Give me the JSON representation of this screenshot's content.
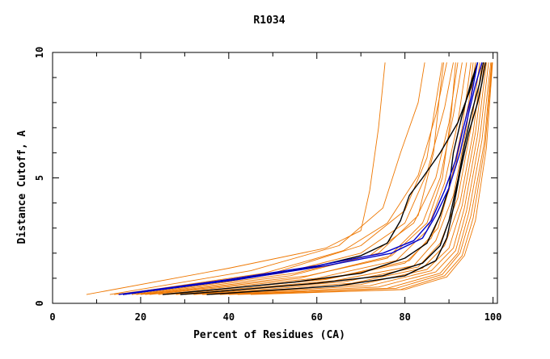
{
  "chart_data": {
    "type": "line",
    "title": "R1034",
    "xlabel": "Percent of Residues (CA)",
    "ylabel": "Distance Cutoff, A",
    "xlim": [
      0,
      101
    ],
    "ylim": [
      0,
      10
    ],
    "x_ticks": [
      "0",
      "20",
      "40",
      "60",
      "80",
      "100"
    ],
    "y_ticks": [
      "0",
      "5",
      "10"
    ],
    "x_tick_values": [
      0,
      20,
      40,
      60,
      80,
      100
    ],
    "y_tick_values": [
      0,
      5,
      10
    ],
    "grid": false,
    "legend": "none",
    "colors": {
      "other_models": "#ee7700",
      "highlight_blue": "#0000cc",
      "highlight_black": "#000000",
      "axes": "#000000"
    },
    "series": [
      {
        "group": "orange",
        "points": [
          [
            7.7,
            0.35
          ],
          [
            40,
            1.4
          ],
          [
            62,
            2.2
          ],
          [
            70,
            2.9
          ],
          [
            72,
            4.5
          ],
          [
            74,
            7
          ],
          [
            75.5,
            9.6
          ]
        ]
      },
      {
        "group": "orange",
        "points": [
          [
            13,
            0.35
          ],
          [
            45,
            1.3
          ],
          [
            65,
            2.3
          ],
          [
            75,
            3.8
          ],
          [
            79,
            6
          ],
          [
            83,
            8
          ],
          [
            84.5,
            9.6
          ]
        ]
      },
      {
        "group": "orange",
        "points": [
          [
            16,
            0.35
          ],
          [
            50,
            1.2
          ],
          [
            70,
            2.3
          ],
          [
            80,
            3.7
          ],
          [
            85,
            5.8
          ],
          [
            87,
            8
          ],
          [
            88.5,
            9.6
          ]
        ]
      },
      {
        "group": "orange",
        "points": [
          [
            15,
            0.35
          ],
          [
            48,
            1.2
          ],
          [
            66,
            2.1
          ],
          [
            76,
            3.2
          ],
          [
            83,
            5.1
          ],
          [
            87,
            7.5
          ],
          [
            89.5,
            9.6
          ]
        ]
      },
      {
        "group": "orange",
        "points": [
          [
            14,
            0.35
          ],
          [
            52,
            1.2
          ],
          [
            70,
            2.0
          ],
          [
            80,
            3.2
          ],
          [
            85,
            5.2
          ],
          [
            89,
            7.8
          ],
          [
            91,
            9.6
          ]
        ]
      },
      {
        "group": "orange",
        "points": [
          [
            18,
            0.35
          ],
          [
            55,
            1.2
          ],
          [
            72,
            1.9
          ],
          [
            82,
            3.2
          ],
          [
            87,
            5
          ],
          [
            90,
            7.2
          ],
          [
            92,
            9.6
          ]
        ]
      },
      {
        "group": "orange",
        "points": [
          [
            20,
            0.35
          ],
          [
            58,
            1.1
          ],
          [
            76,
            1.8
          ],
          [
            84,
            3.2
          ],
          [
            88,
            5
          ],
          [
            91,
            7.5
          ],
          [
            93,
            9.6
          ]
        ]
      },
      {
        "group": "orange",
        "points": [
          [
            22,
            0.35
          ],
          [
            60,
            1.0
          ],
          [
            78,
            1.7
          ],
          [
            85,
            2.9
          ],
          [
            89,
            4.8
          ],
          [
            92,
            7.2
          ],
          [
            94,
            9.6
          ]
        ]
      },
      {
        "group": "orange",
        "points": [
          [
            24,
            0.35
          ],
          [
            62,
            0.95
          ],
          [
            80,
            1.6
          ],
          [
            86,
            2.6
          ],
          [
            90,
            4.5
          ],
          [
            93,
            7
          ],
          [
            95,
            9.6
          ]
        ]
      },
      {
        "group": "orange",
        "points": [
          [
            26,
            0.35
          ],
          [
            64,
            0.9
          ],
          [
            82,
            1.5
          ],
          [
            87,
            2.5
          ],
          [
            91,
            4.3
          ],
          [
            94,
            7
          ],
          [
            96,
            9.6
          ]
        ]
      },
      {
        "group": "orange",
        "points": [
          [
            28,
            0.35
          ],
          [
            66,
            0.85
          ],
          [
            83,
            1.45
          ],
          [
            88,
            2.4
          ],
          [
            92,
            4.2
          ],
          [
            95,
            7
          ],
          [
            97,
            9.6
          ]
        ]
      },
      {
        "group": "orange",
        "points": [
          [
            30,
            0.35
          ],
          [
            68,
            0.8
          ],
          [
            84,
            1.4
          ],
          [
            89,
            2.3
          ],
          [
            92.5,
            4
          ],
          [
            95.5,
            6.8
          ],
          [
            97.5,
            9.6
          ]
        ]
      },
      {
        "group": "orange",
        "points": [
          [
            32,
            0.35
          ],
          [
            70,
            0.75
          ],
          [
            85,
            1.35
          ],
          [
            90,
            2.2
          ],
          [
            93,
            3.9
          ],
          [
            96,
            6.8
          ],
          [
            98,
            9.6
          ]
        ]
      },
      {
        "group": "orange",
        "points": [
          [
            34,
            0.35
          ],
          [
            72,
            0.7
          ],
          [
            86,
            1.3
          ],
          [
            91,
            2.2
          ],
          [
            93.5,
            3.8
          ],
          [
            96.5,
            6.7
          ],
          [
            98.5,
            9.6
          ]
        ]
      },
      {
        "group": "orange",
        "points": [
          [
            36,
            0.35
          ],
          [
            74,
            0.65
          ],
          [
            87,
            1.25
          ],
          [
            91.5,
            2.1
          ],
          [
            94,
            3.7
          ],
          [
            97,
            6.6
          ],
          [
            99,
            9.6
          ]
        ]
      },
      {
        "group": "orange",
        "points": [
          [
            38,
            0.35
          ],
          [
            76,
            0.6
          ],
          [
            88,
            1.2
          ],
          [
            92,
            2.0
          ],
          [
            94.5,
            3.6
          ],
          [
            97.5,
            6.5
          ],
          [
            99.5,
            9.6
          ]
        ]
      },
      {
        "group": "orange",
        "points": [
          [
            40,
            0.35
          ],
          [
            78,
            0.6
          ],
          [
            88.5,
            1.15
          ],
          [
            92.5,
            2.0
          ],
          [
            95,
            3.5
          ],
          [
            98,
            6.4
          ],
          [
            99.7,
            9.6
          ]
        ]
      },
      {
        "group": "orange",
        "points": [
          [
            42,
            0.35
          ],
          [
            79,
            0.55
          ],
          [
            89,
            1.1
          ],
          [
            93,
            1.9
          ],
          [
            95.5,
            3.4
          ],
          [
            98.2,
            6.3
          ],
          [
            99.8,
            9.6
          ]
        ]
      },
      {
        "group": "orange",
        "points": [
          [
            45,
            0.35
          ],
          [
            80,
            0.55
          ],
          [
            89.5,
            1.05
          ],
          [
            93.5,
            1.9
          ],
          [
            96,
            3.3
          ],
          [
            98.5,
            6.2
          ],
          [
            99.9,
            9.6
          ]
        ]
      },
      {
        "group": "orange",
        "points": [
          [
            21,
            0.35
          ],
          [
            56,
            1.0
          ],
          [
            77,
            1.9
          ],
          [
            85,
            3.2
          ],
          [
            88.5,
            5
          ],
          [
            90.5,
            7.5
          ],
          [
            91.5,
            9.6
          ]
        ]
      },
      {
        "group": "orange",
        "points": [
          [
            19,
            0.35
          ],
          [
            54,
            1.1
          ],
          [
            74,
            2.0
          ],
          [
            83,
            3.5
          ],
          [
            86.5,
            6
          ],
          [
            88,
            8.5
          ],
          [
            88.8,
            9.6
          ]
        ]
      },
      {
        "group": "orange",
        "points": [
          [
            25,
            0.35
          ],
          [
            63,
            1.0
          ],
          [
            81,
            1.7
          ],
          [
            87.5,
            3.0
          ],
          [
            91.5,
            5.5
          ],
          [
            94.5,
            8
          ],
          [
            95.5,
            9.6
          ]
        ]
      },
      {
        "group": "blue",
        "points": [
          [
            15,
            0.35
          ],
          [
            40,
            0.95
          ],
          [
            60,
            1.5
          ],
          [
            75,
            2.0
          ],
          [
            82,
            2.5
          ],
          [
            86,
            3.3
          ],
          [
            89,
            4.5
          ],
          [
            91.5,
            5.7
          ],
          [
            93,
            6.8
          ],
          [
            95,
            8.2
          ],
          [
            96.5,
            9.6
          ]
        ]
      },
      {
        "group": "blue",
        "points": [
          [
            16,
            0.35
          ],
          [
            42,
            0.95
          ],
          [
            62,
            1.5
          ],
          [
            77,
            2.0
          ],
          [
            84,
            2.6
          ],
          [
            87,
            3.5
          ],
          [
            90,
            4.6
          ],
          [
            92.5,
            6
          ],
          [
            94.5,
            7.6
          ],
          [
            96,
            8.7
          ],
          [
            97.5,
            9.6
          ]
        ]
      },
      {
        "group": "black",
        "points": [
          [
            16,
            0.35
          ],
          [
            40,
            0.9
          ],
          [
            58,
            1.4
          ],
          [
            70,
            1.9
          ],
          [
            76,
            2.4
          ],
          [
            79,
            3.3
          ],
          [
            81,
            4.3
          ],
          [
            84,
            5.0
          ],
          [
            88,
            6.0
          ],
          [
            92,
            7.2
          ],
          [
            95,
            8.6
          ],
          [
            96.5,
            9.6
          ]
        ]
      },
      {
        "group": "black",
        "points": [
          [
            25,
            0.35
          ],
          [
            55,
            0.85
          ],
          [
            70,
            1.2
          ],
          [
            80,
            1.8
          ],
          [
            85,
            2.4
          ],
          [
            88,
            3.5
          ],
          [
            90,
            4.6
          ],
          [
            91,
            6
          ],
          [
            93,
            7.5
          ],
          [
            95,
            8.8
          ],
          [
            96.5,
            9.6
          ]
        ]
      },
      {
        "group": "black",
        "points": [
          [
            29,
            0.35
          ],
          [
            60,
            0.8
          ],
          [
            75,
            1.1
          ],
          [
            84,
            1.6
          ],
          [
            88,
            2.3
          ],
          [
            90,
            3.3
          ],
          [
            92,
            4.9
          ],
          [
            93.5,
            6.3
          ],
          [
            95,
            7.5
          ],
          [
            97,
            8.8
          ],
          [
            97.8,
            9.6
          ]
        ]
      },
      {
        "group": "black",
        "points": [
          [
            35,
            0.35
          ],
          [
            65,
            0.7
          ],
          [
            80,
            1.1
          ],
          [
            87,
            1.7
          ],
          [
            89.5,
            2.6
          ],
          [
            91,
            3.8
          ],
          [
            92.5,
            5.2
          ],
          [
            94.5,
            6.8
          ],
          [
            96.5,
            8.0
          ],
          [
            97.5,
            8.8
          ],
          [
            98.3,
            9.6
          ]
        ]
      }
    ]
  }
}
